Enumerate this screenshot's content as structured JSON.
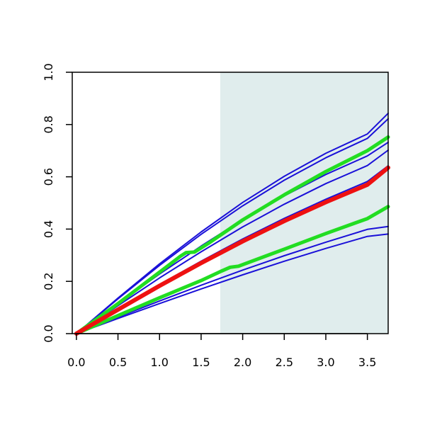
{
  "chart_data": {
    "type": "line",
    "title": "",
    "xlabel": "",
    "ylabel": "",
    "xlim": [
      -0.05,
      3.75
    ],
    "ylim": [
      0.0,
      1.0
    ],
    "x_ticks": [
      "0.0",
      "0.5",
      "1.0",
      "1.5",
      "2.0",
      "2.5",
      "3.0",
      "3.5"
    ],
    "y_ticks": [
      "0.0",
      "0.2",
      "0.4",
      "0.6",
      "0.8",
      "1.0"
    ],
    "shaded_region": {
      "x_from": 1.73,
      "x_to": 3.75,
      "color": "#e0eded"
    },
    "grid": false,
    "series": [
      {
        "color": "#1a10d8",
        "width": 2,
        "x": [
          0,
          0.5,
          1.0,
          1.5,
          2.0,
          2.5,
          3.0,
          3.5,
          3.75
        ],
        "values": [
          0,
          0.136,
          0.267,
          0.389,
          0.502,
          0.602,
          0.69,
          0.764,
          0.843
        ]
      },
      {
        "color": "#1a10d8",
        "width": 2,
        "x": [
          0,
          0.5,
          1.0,
          1.5,
          2.0,
          2.5,
          3.0,
          3.5,
          3.75
        ],
        "values": [
          0,
          0.133,
          0.261,
          0.38,
          0.489,
          0.587,
          0.673,
          0.747,
          0.822
        ]
      },
      {
        "color": "#1a10d8",
        "width": 2,
        "x": [
          0,
          0.5,
          1.0,
          1.5,
          2.0,
          2.5,
          3.0,
          3.5,
          3.75
        ],
        "values": [
          0,
          0.115,
          0.228,
          0.335,
          0.436,
          0.527,
          0.609,
          0.68,
          0.732
        ]
      },
      {
        "color": "#1a10d8",
        "width": 2,
        "x": [
          0,
          0.5,
          1.0,
          1.5,
          2.0,
          2.5,
          3.0,
          3.5,
          3.75
        ],
        "values": [
          0,
          0.107,
          0.213,
          0.313,
          0.408,
          0.495,
          0.574,
          0.643,
          0.702
        ]
      },
      {
        "color": "#1a10d8",
        "width": 2,
        "x": [
          0,
          0.5,
          1.0,
          1.5,
          2.0,
          2.5,
          3.0,
          3.5,
          3.75
        ],
        "values": [
          0,
          0.095,
          0.188,
          0.277,
          0.362,
          0.441,
          0.514,
          0.582,
          0.642
        ]
      },
      {
        "color": "#1a10d8",
        "width": 2,
        "x": [
          0,
          0.5,
          1.0,
          1.5,
          2.0,
          2.5,
          3.0,
          3.5,
          3.75
        ],
        "values": [
          0,
          0.063,
          0.125,
          0.185,
          0.243,
          0.298,
          0.35,
          0.399,
          0.41
        ]
      },
      {
        "color": "#1a10d8",
        "width": 2,
        "x": [
          0,
          0.5,
          1.0,
          1.5,
          2.0,
          2.5,
          3.0,
          3.5,
          3.75
        ],
        "values": [
          0,
          0.058,
          0.115,
          0.171,
          0.225,
          0.277,
          0.326,
          0.372,
          0.381
        ]
      },
      {
        "color": "#22dd22",
        "width": 5,
        "x": [
          0,
          0.5,
          1.0,
          1.25,
          1.32,
          1.42,
          1.6,
          2.0,
          2.5,
          3.0,
          3.5,
          3.75
        ],
        "values": [
          0,
          0.115,
          0.235,
          0.296,
          0.31,
          0.312,
          0.348,
          0.435,
          0.531,
          0.62,
          0.7,
          0.752
        ]
      },
      {
        "color": "#22dd22",
        "width": 5,
        "x": [
          0,
          0.5,
          1.0,
          1.5,
          1.75,
          1.85,
          1.95,
          2.5,
          3.0,
          3.5,
          3.75
        ],
        "values": [
          0,
          0.069,
          0.137,
          0.203,
          0.24,
          0.254,
          0.258,
          0.323,
          0.383,
          0.44,
          0.486
        ]
      },
      {
        "color": "#ee1111",
        "width": 6,
        "x": [
          0,
          0.5,
          1.0,
          1.5,
          2.0,
          2.5,
          3.0,
          3.5,
          3.75
        ],
        "values": [
          0,
          0.092,
          0.183,
          0.27,
          0.353,
          0.431,
          0.503,
          0.57,
          0.635
        ]
      }
    ]
  }
}
